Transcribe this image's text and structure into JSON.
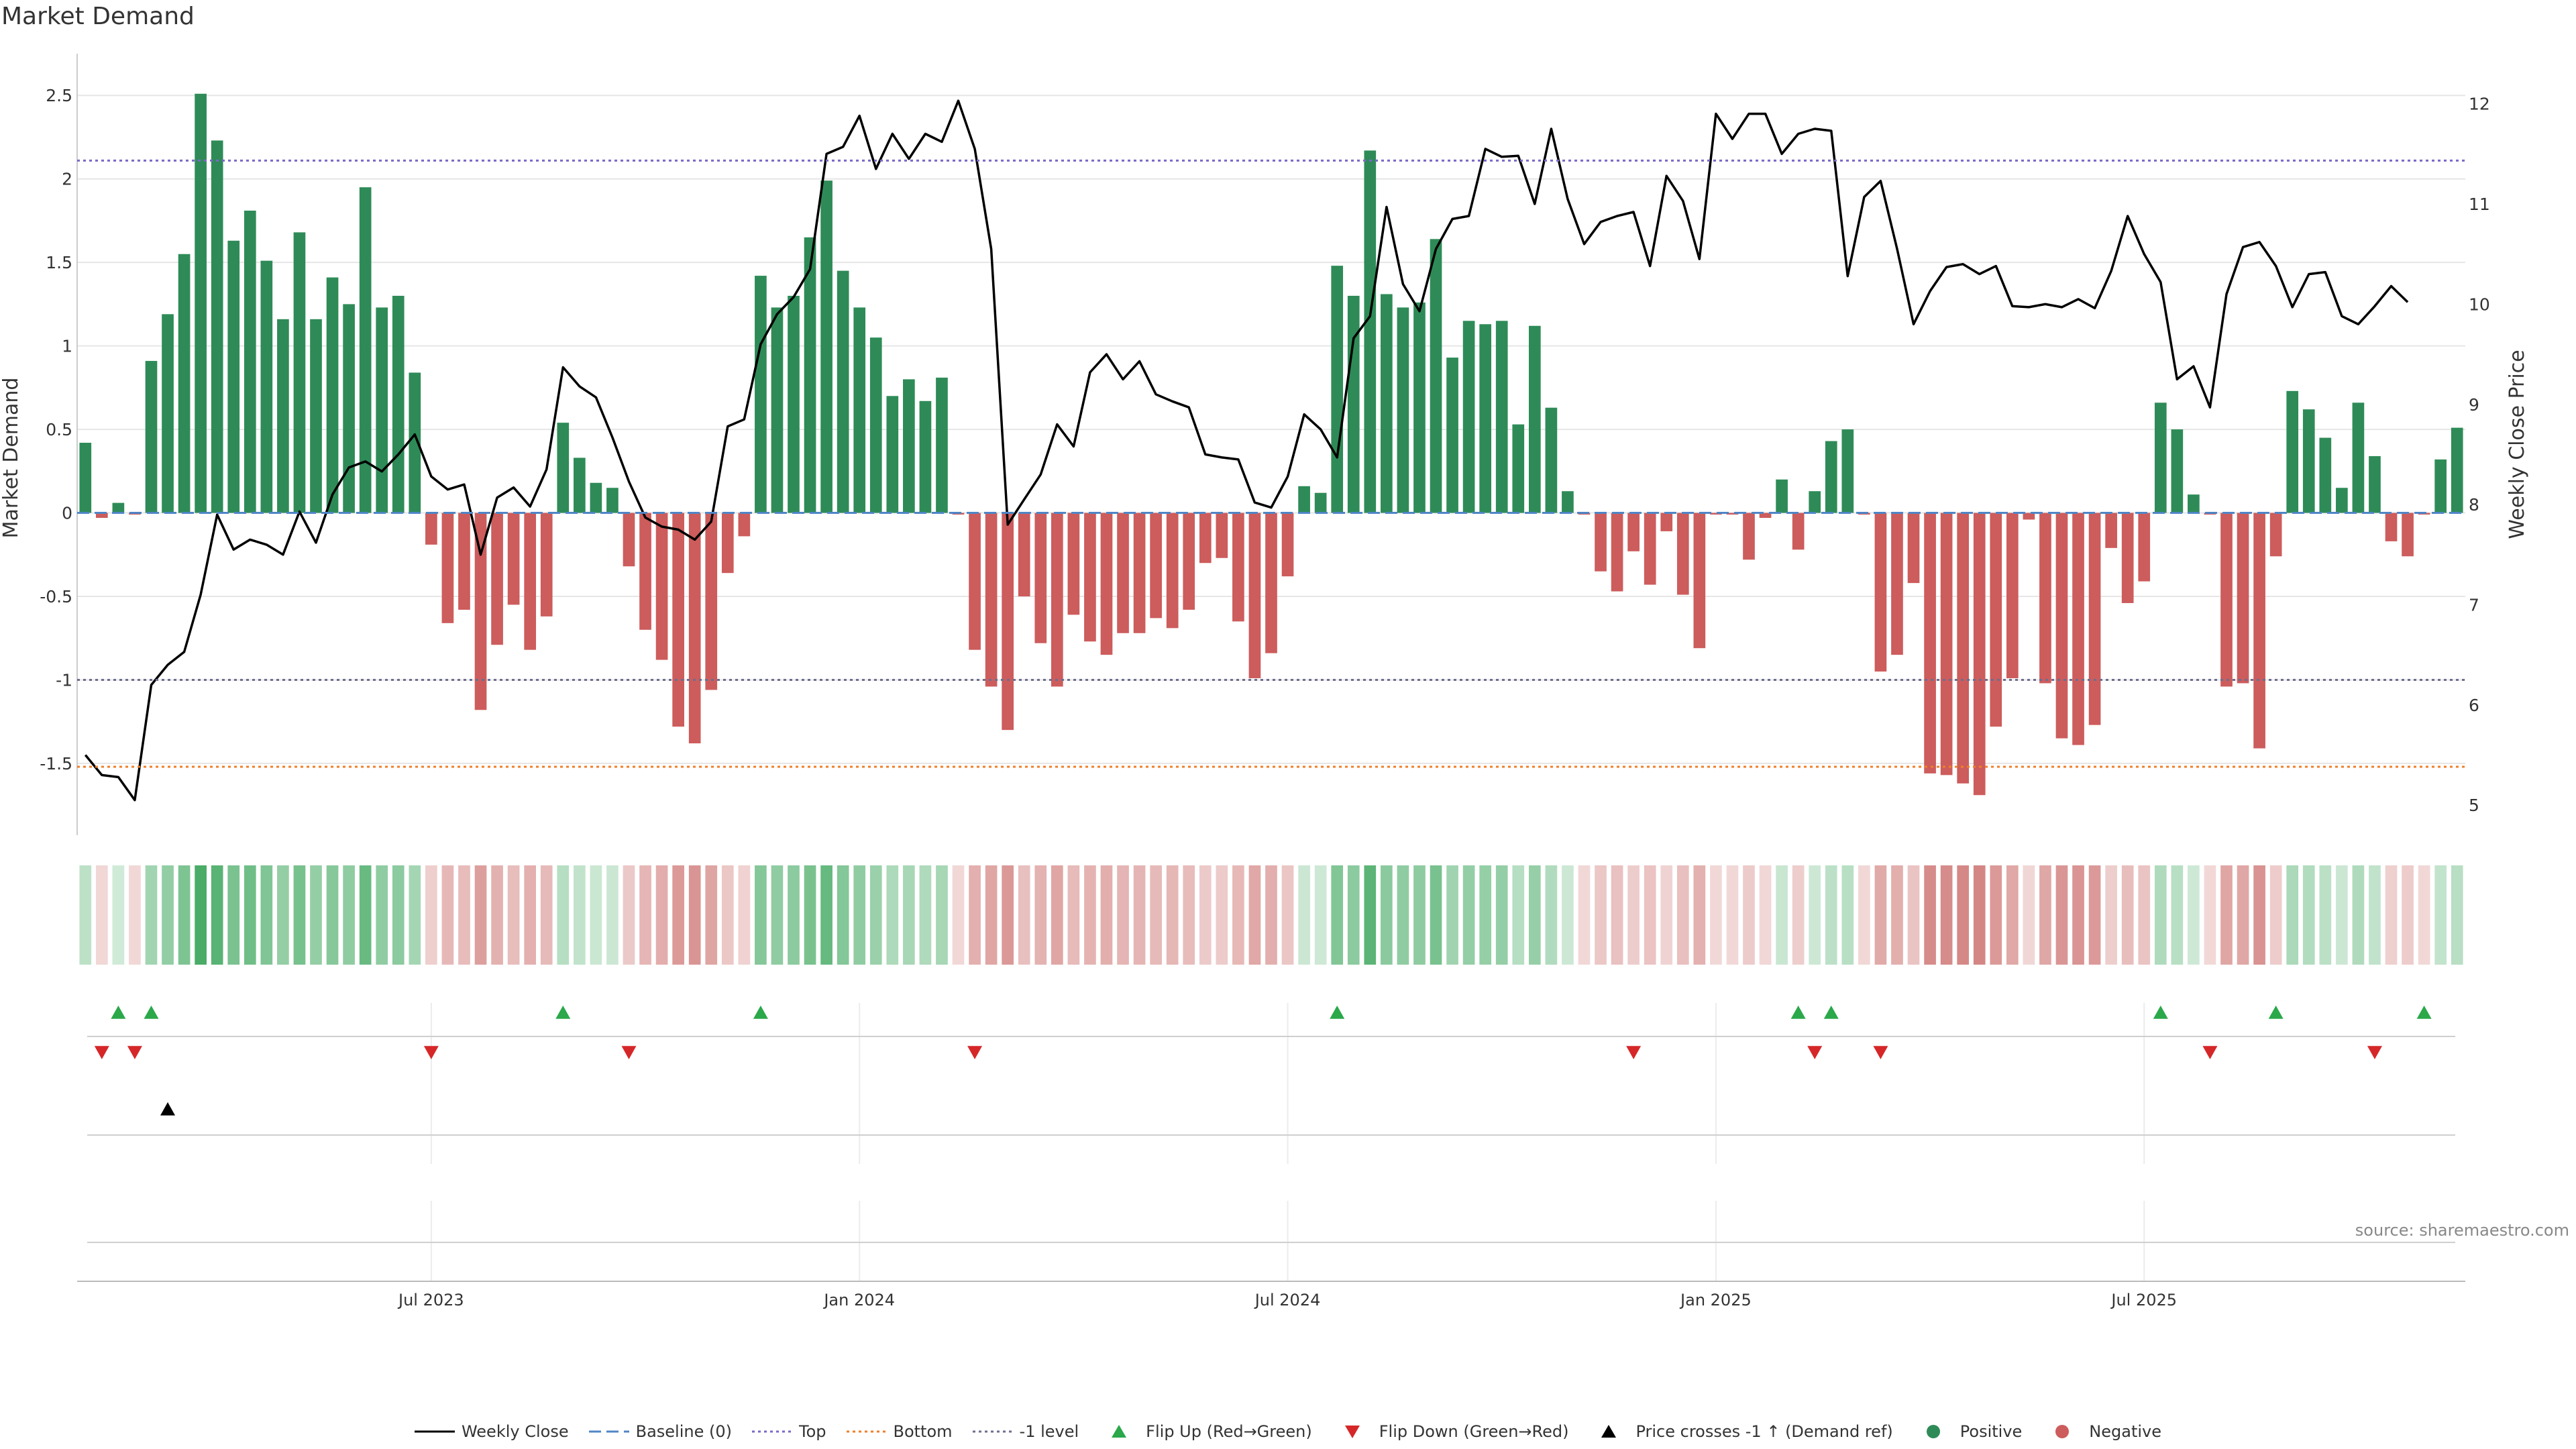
{
  "title": "Market Demand",
  "source_note": "source: sharemaestro.com",
  "colors": {
    "positive": "#2e8b57",
    "negative": "#cd5c5c",
    "price_line": "#000000",
    "baseline": "#4f86c6",
    "top": "#7b68c8",
    "bottom": "#f07f28",
    "minus_one": "#6e6e8e",
    "flip_up": "#2aa84a",
    "flip_down": "#d62728",
    "grid": "#e6e6e6"
  },
  "legend": [
    {
      "label": "Weekly Close",
      "kind": "line",
      "color": "#000000",
      "dash": "none"
    },
    {
      "label": "Baseline (0)",
      "kind": "line",
      "color": "#4f86c6",
      "dash": "18,8"
    },
    {
      "label": "Top",
      "kind": "line",
      "color": "#7b68c8",
      "dash": "4,5"
    },
    {
      "label": "Bottom",
      "kind": "line",
      "color": "#f07f28",
      "dash": "4,5"
    },
    {
      "label": "-1 level",
      "kind": "line",
      "color": "#6e6e8e",
      "dash": "4,5"
    },
    {
      "label": "Flip Up (Red→Green)",
      "kind": "tri-up",
      "color": "#2aa84a"
    },
    {
      "label": "Flip Down (Green→Red)",
      "kind": "tri-down",
      "color": "#d62728"
    },
    {
      "label": "Price crosses -1 ↑ (Demand ref)",
      "kind": "tri-up",
      "color": "#000000"
    },
    {
      "label": "Positive",
      "kind": "dot",
      "color": "#2e8b57"
    },
    {
      "label": "Negative",
      "kind": "dot",
      "color": "#cd5c5c"
    }
  ],
  "chart_data": {
    "type": "bar",
    "title": "Market Demand",
    "ylabel": "Market Demand",
    "y2label": "Weekly Close Price",
    "ylim": [
      -1.93,
      2.75
    ],
    "y2lim": [
      4.7,
      12.5
    ],
    "yticks": [
      -1.5,
      -1,
      -0.5,
      0,
      0.5,
      1,
      1.5,
      2,
      2.5
    ],
    "y2ticks": [
      5,
      6,
      7,
      8,
      9,
      10,
      11,
      12
    ],
    "x_tick_labels": [
      "Jul 2023",
      "Jan 2024",
      "Jul 2024",
      "Jan 2025",
      "Jul 2025"
    ],
    "x_tick_weeks": [
      21.5,
      47.5,
      73.5,
      99.5,
      125.5
    ],
    "reference_lines": {
      "baseline": 0,
      "top": 2.11,
      "bottom": -1.52,
      "minus_one": -1
    },
    "demand": [
      0.42,
      -0.03,
      0.06,
      -0.01,
      0.91,
      1.19,
      1.55,
      2.51,
      2.23,
      1.63,
      1.81,
      1.51,
      1.16,
      1.68,
      1.16,
      1.41,
      1.25,
      1.95,
      1.23,
      1.3,
      0.84,
      -0.19,
      -0.66,
      -0.58,
      -1.18,
      -0.79,
      -0.55,
      -0.82,
      -0.62,
      0.54,
      0.33,
      0.18,
      0.15,
      -0.32,
      -0.7,
      -0.88,
      -1.28,
      -1.38,
      -1.06,
      -0.36,
      -0.14,
      1.42,
      1.23,
      1.3,
      1.65,
      1.99,
      1.45,
      1.23,
      1.05,
      0.7,
      0.8,
      0.67,
      0.81,
      -0.01,
      -0.82,
      -1.04,
      -1.3,
      -0.5,
      -0.78,
      -1.04,
      -0.61,
      -0.77,
      -0.85,
      -0.72,
      -0.72,
      -0.63,
      -0.69,
      -0.58,
      -0.3,
      -0.27,
      -0.65,
      -0.99,
      -0.84,
      -0.38,
      0.16,
      0.12,
      1.48,
      1.3,
      2.17,
      1.31,
      1.23,
      1.26,
      1.64,
      0.93,
      1.15,
      1.13,
      1.15,
      0.53,
      1.12,
      0.63,
      0.13,
      -0.01,
      -0.35,
      -0.47,
      -0.23,
      -0.43,
      -0.11,
      -0.49,
      -0.81,
      -0.01,
      -0.01,
      -0.28,
      -0.03,
      0.2,
      -0.22,
      0.13,
      0.43,
      0.5,
      -0.01,
      -0.95,
      -0.85,
      -0.42,
      -1.56,
      -1.57,
      -1.62,
      -1.69,
      -1.28,
      -0.99,
      -0.04,
      -1.02,
      -1.35,
      -1.39,
      -1.27,
      -0.21,
      -0.54,
      -0.41,
      0.66,
      0.5,
      0.11,
      -0.01,
      -1.04,
      -1.02,
      -1.41,
      -0.26,
      0.73,
      0.62,
      0.45,
      0.15,
      0.66,
      0.34,
      -0.17,
      -0.26,
      -0.01,
      0.32,
      0.51
    ],
    "weekly_close": [
      5.5,
      5.3,
      5.28,
      5.05,
      6.2,
      6.4,
      6.53,
      7.1,
      7.9,
      7.55,
      7.65,
      7.6,
      7.5,
      7.93,
      7.62,
      8.1,
      8.37,
      8.43,
      8.33,
      8.5,
      8.7,
      8.28,
      8.15,
      8.2,
      7.5,
      8.07,
      8.17,
      7.98,
      8.35,
      9.37,
      9.18,
      9.07,
      8.67,
      8.23,
      7.87,
      7.78,
      7.75,
      7.65,
      7.83,
      8.78,
      8.85,
      9.6,
      9.9,
      10.07,
      10.35,
      11.5,
      11.57,
      11.88,
      11.35,
      11.7,
      11.45,
      11.7,
      11.62,
      12.03,
      11.55,
      10.55,
      7.8,
      8.05,
      8.3,
      8.8,
      8.58,
      9.32,
      9.5,
      9.25,
      9.43,
      9.1,
      9.03,
      8.97,
      8.5,
      8.47,
      8.45,
      8.02,
      7.97,
      8.28,
      8.9,
      8.75,
      8.47,
      9.66,
      9.88,
      10.97,
      10.2,
      9.93,
      10.55,
      10.85,
      10.88,
      11.55,
      11.47,
      11.48,
      11.0,
      11.75,
      11.05,
      10.6,
      10.82,
      10.88,
      10.92,
      10.38,
      11.28,
      11.03,
      10.45,
      11.9,
      11.65,
      11.9,
      11.9,
      11.5,
      11.7,
      11.75,
      11.73,
      10.28,
      11.07,
      11.23,
      10.55,
      9.8,
      10.13,
      10.37,
      10.4,
      10.3,
      10.38,
      9.98,
      9.97,
      10.0,
      9.97,
      10.05,
      9.96,
      10.33,
      10.88,
      10.5,
      10.22,
      9.25,
      9.38,
      8.97,
      10.1,
      10.57,
      10.62,
      10.38,
      9.97,
      10.3,
      10.32,
      9.88,
      9.8,
      9.98,
      10.18,
      10.02
    ],
    "flip_up_weeks": [
      2,
      4,
      29,
      41,
      76,
      104,
      106,
      126,
      133,
      142
    ],
    "flip_down_weeks": [
      1,
      3,
      21,
      33,
      54,
      94,
      105,
      109,
      129,
      139
    ],
    "price_cross_weeks": [
      5
    ]
  }
}
